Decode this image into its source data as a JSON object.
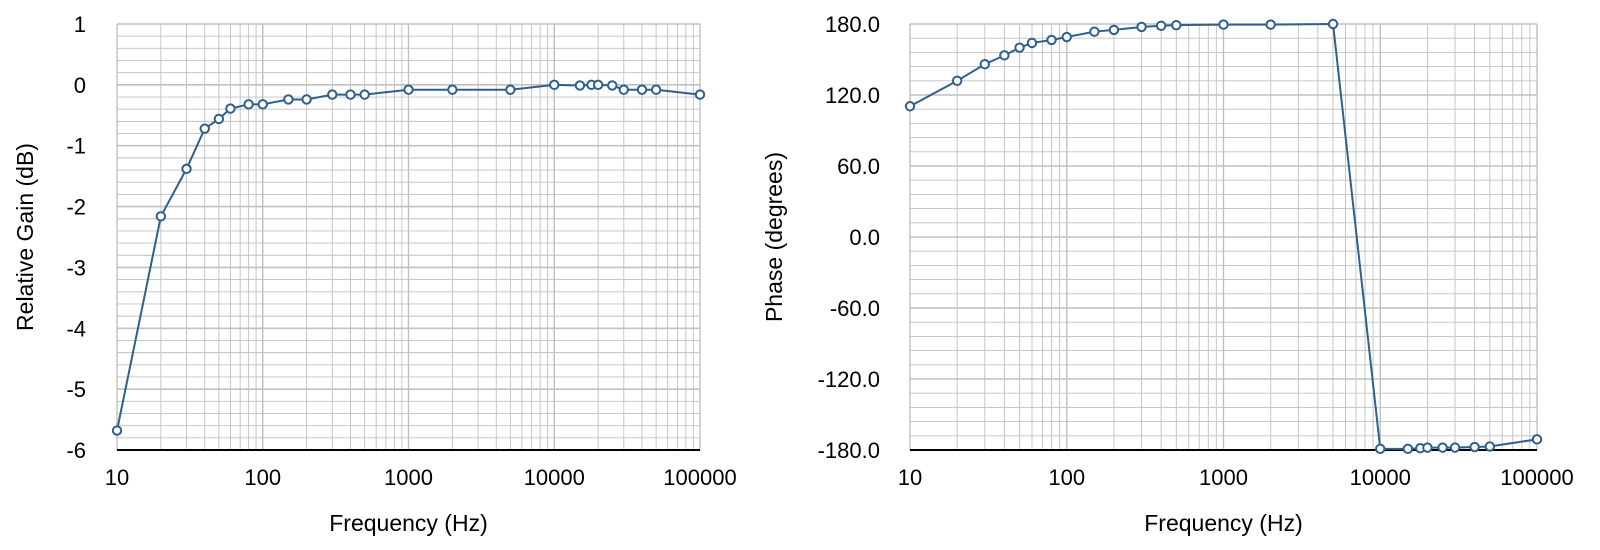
{
  "colors": {
    "series": "#2f5f8f",
    "marker_fill": "#ffffff",
    "grid": "#c0c0c0",
    "axis": "#000000",
    "text": "#000000"
  },
  "chart_data": [
    {
      "type": "line",
      "xscale": "log",
      "xlim": [
        10,
        100000
      ],
      "ylim": [
        -6,
        1
      ],
      "xlabel": "Frequency (Hz)",
      "ylabel": "Relative Gain (dB)",
      "grid": true,
      "x_tick_labels": [
        "10",
        "100",
        "1000",
        "10000",
        "100000"
      ],
      "y_tick_labels": [
        "1",
        "0",
        "-1",
        "-2",
        "-3",
        "-4",
        "-5",
        "-6"
      ],
      "series": [
        {
          "x": [
            10,
            20,
            30,
            40,
            50,
            60,
            80,
            100,
            150,
            200,
            300,
            400,
            500,
            1000,
            2000,
            5000,
            10000,
            15000,
            18000,
            20000,
            25000,
            30000,
            40000,
            50000,
            100000
          ],
          "y": [
            -5.68,
            -2.16,
            -1.38,
            -0.72,
            -0.56,
            -0.39,
            -0.32,
            -0.32,
            -0.24,
            -0.24,
            -0.16,
            -0.16,
            -0.16,
            -0.08,
            -0.08,
            -0.08,
            0.0,
            -0.01,
            0.0,
            0.0,
            -0.01,
            -0.08,
            -0.08,
            -0.08,
            -0.16
          ]
        }
      ]
    },
    {
      "type": "line",
      "xscale": "log",
      "xlim": [
        10,
        100000
      ],
      "ylim": [
        -180,
        180
      ],
      "xlabel": "Frequency (Hz)",
      "ylabel": "Phase (degrees)",
      "grid": true,
      "x_tick_labels": [
        "10",
        "100",
        "1000",
        "10000",
        "100000"
      ],
      "y_tick_labels": [
        "180.0",
        "120.0",
        "60.0",
        "0.0",
        "-60.0",
        "-120.0",
        "-180.0"
      ],
      "series": [
        {
          "x": [
            10,
            20,
            30,
            40,
            50,
            60,
            80,
            100,
            150,
            200,
            300,
            400,
            500,
            1000,
            2000,
            5000,
            10000,
            15000,
            18000,
            20000,
            25000,
            30000,
            40000,
            50000,
            100000
          ],
          "y": [
            110.5,
            132,
            146,
            153.5,
            160,
            164,
            166.5,
            169,
            173.5,
            175,
            177.5,
            178.5,
            179,
            179.5,
            179.5,
            180,
            -179,
            -179,
            -178.5,
            -178,
            -178,
            -178,
            -177.5,
            -177,
            -171
          ]
        }
      ]
    }
  ]
}
